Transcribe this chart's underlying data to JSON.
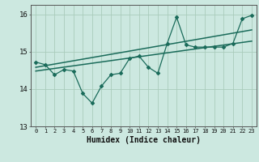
{
  "title": "",
  "xlabel": "Humidex (Indice chaleur)",
  "ylabel": "",
  "bg_color": "#cce8e0",
  "grid_color": "#aaccbb",
  "line_color": "#1a6b5a",
  "xlim": [
    -0.5,
    23.5
  ],
  "ylim": [
    13,
    16.25
  ],
  "yticks": [
    13,
    14,
    15,
    16
  ],
  "xticks": [
    0,
    1,
    2,
    3,
    4,
    5,
    6,
    7,
    8,
    9,
    10,
    11,
    12,
    13,
    14,
    15,
    16,
    17,
    18,
    19,
    20,
    21,
    22,
    23
  ],
  "scatter_x": [
    0,
    1,
    2,
    3,
    4,
    5,
    6,
    7,
    8,
    9,
    10,
    11,
    12,
    13,
    14,
    15,
    16,
    17,
    18,
    19,
    20,
    21,
    22,
    23
  ],
  "scatter_y": [
    14.72,
    14.65,
    14.38,
    14.52,
    14.48,
    13.88,
    13.62,
    14.08,
    14.38,
    14.42,
    14.82,
    14.88,
    14.58,
    14.42,
    15.22,
    15.92,
    15.18,
    15.12,
    15.12,
    15.12,
    15.12,
    15.22,
    15.88,
    15.97
  ],
  "trend1_x": [
    0,
    23
  ],
  "trend1_y": [
    14.48,
    15.28
  ],
  "trend2_x": [
    0,
    23
  ],
  "trend2_y": [
    14.58,
    15.58
  ],
  "font_size_xlabel": 7,
  "tick_fontsize": 6.5,
  "marker_size": 4
}
